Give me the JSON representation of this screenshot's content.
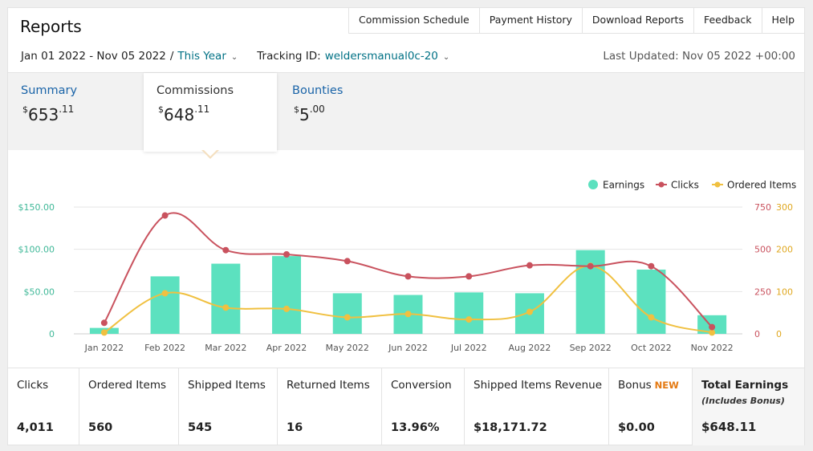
{
  "header": {
    "title": "Reports",
    "nav": [
      "Commission Schedule",
      "Payment History",
      "Download Reports",
      "Feedback",
      "Help"
    ]
  },
  "filters": {
    "date_range": "Jan 01 2022 - Nov 05 2022",
    "separator": "/",
    "preset": "This Year",
    "tracking_label": "Tracking ID:",
    "tracking_id": "weldersmanual0c-20",
    "last_updated": "Last Updated: Nov 05 2022 +00:00"
  },
  "tabs": [
    {
      "label": "Summary",
      "currency": "$",
      "whole": "653",
      "cents": ".11"
    },
    {
      "label": "Commissions",
      "currency": "$",
      "whole": "648",
      "cents": ".11"
    },
    {
      "label": "Bounties",
      "currency": "$",
      "whole": "5",
      "cents": ".00"
    }
  ],
  "colors": {
    "earnings": "#5ce1bf",
    "clicks": "#c9525e",
    "ordered": "#f0c040",
    "link": "#007185",
    "new_badge": "#e47911"
  },
  "chart_data": {
    "type": "bar+line",
    "categories": [
      "Jan 2022",
      "Feb 2022",
      "Mar 2022",
      "Apr 2022",
      "May 2022",
      "Jun 2022",
      "Jul 2022",
      "Aug 2022",
      "Sep 2022",
      "Oct 2022",
      "Nov 2022"
    ],
    "series": [
      {
        "name": "Earnings",
        "type": "bar",
        "axis": "left",
        "values": [
          7,
          68,
          83,
          92,
          48,
          46,
          49,
          48,
          99,
          76,
          22
        ]
      },
      {
        "name": "Clicks",
        "type": "line",
        "axis": "right1",
        "values": [
          65,
          700,
          495,
          470,
          430,
          340,
          340,
          405,
          400,
          400,
          40
        ]
      },
      {
        "name": "Ordered Items",
        "type": "line",
        "axis": "right2",
        "values": [
          3,
          96,
          62,
          59,
          39,
          47,
          34,
          52,
          161,
          39,
          3
        ]
      }
    ],
    "y_left": {
      "ticks": [
        "0",
        "$50.00",
        "$100.00",
        "$150.00"
      ],
      "range": [
        0,
        150
      ]
    },
    "y_right1": {
      "ticks": [
        "0",
        "250",
        "500",
        "750"
      ],
      "range": [
        0,
        750
      ]
    },
    "y_right2": {
      "ticks": [
        "0",
        "100",
        "200",
        "300"
      ],
      "range": [
        0,
        300
      ]
    },
    "legend": [
      "Earnings",
      "Clicks",
      "Ordered Items"
    ],
    "legend_position": "top-right",
    "grid": true
  },
  "stats": [
    {
      "label": "Clicks",
      "value": "4,011"
    },
    {
      "label": "Ordered Items",
      "value": "560"
    },
    {
      "label": "Shipped Items",
      "value": "545"
    },
    {
      "label": "Returned Items",
      "value": "16"
    },
    {
      "label": "Conversion",
      "value": "13.96%"
    },
    {
      "label": "Shipped Items Revenue",
      "value": "$18,171.72"
    },
    {
      "label": "Bonus",
      "badge": "NEW",
      "value": "$0.00"
    },
    {
      "label": "Total Earnings",
      "sub": "(Includes Bonus)",
      "value": "$648.11"
    }
  ]
}
